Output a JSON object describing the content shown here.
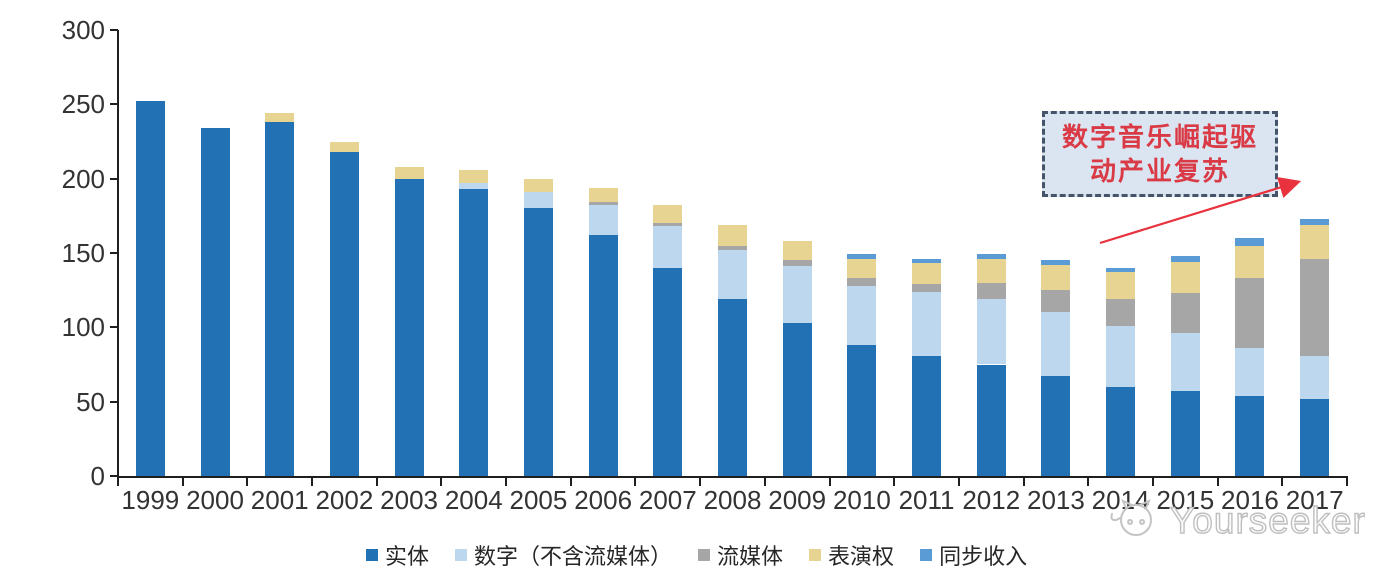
{
  "chart_data": {
    "type": "bar",
    "stacked": true,
    "title": "",
    "xlabel": "",
    "ylabel": "",
    "ylim": [
      0,
      300
    ],
    "yticks": [
      0,
      50,
      100,
      150,
      200,
      250,
      300
    ],
    "grid": false,
    "legend_position": "bottom",
    "categories": [
      "1999",
      "2000",
      "2001",
      "2002",
      "2003",
      "2004",
      "2005",
      "2006",
      "2007",
      "2008",
      "2009",
      "2010",
      "2011",
      "2012",
      "2013",
      "2014",
      "2015",
      "2016",
      "2017"
    ],
    "series": [
      {
        "name": "实体",
        "color": "#2171B4",
        "values": [
          252,
          234,
          238,
          218,
          200,
          193,
          180,
          162,
          140,
          119,
          103,
          88,
          81,
          75,
          67,
          60,
          57,
          54,
          52
        ]
      },
      {
        "name": "数字（不含流媒体）",
        "color": "#BDD7EE",
        "values": [
          0,
          0,
          0,
          0,
          0,
          4,
          11,
          20,
          28,
          33,
          38,
          40,
          43,
          44,
          43,
          41,
          39,
          32,
          29
        ]
      },
      {
        "name": "流媒体",
        "color": "#A6A6A6",
        "values": [
          0,
          0,
          0,
          0,
          0,
          0,
          0,
          2,
          2,
          3,
          4,
          5,
          5,
          11,
          15,
          18,
          27,
          47,
          65
        ]
      },
      {
        "name": "表演权",
        "color": "#E7D392",
        "values": [
          0,
          0,
          6,
          7,
          8,
          9,
          9,
          10,
          12,
          14,
          13,
          13,
          14,
          16,
          17,
          18,
          21,
          22,
          23
        ]
      },
      {
        "name": "同步收入",
        "color": "#5B9BD5",
        "values": [
          0,
          0,
          0,
          0,
          0,
          0,
          0,
          0,
          0,
          0,
          0,
          3,
          3,
          3,
          3,
          3,
          4,
          5,
          4
        ]
      }
    ]
  },
  "annotation": {
    "line1": "数字音乐崛起驱",
    "line2": "动产业复苏",
    "box_fill": "#DBE5F1",
    "border_color": "#44546A",
    "text_color": "#D93A45",
    "arrow_color": "#E8323E"
  },
  "watermark": {
    "text": "Yourseeker",
    "color": "#BFBFBF"
  },
  "axis": {
    "line_color": "#1F1F1F",
    "label_color": "#333333"
  }
}
